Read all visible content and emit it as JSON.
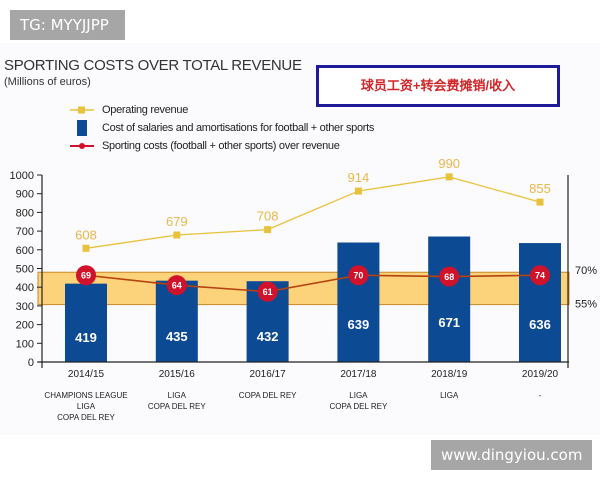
{
  "watermarks": {
    "top": "TG: MYYJJPP",
    "bottom": "www.dingyiou.com"
  },
  "annotation_box": "球员工资+转会费摊销/收入",
  "colors": {
    "revenue": "#e8c23a",
    "bar": "#0d4a94",
    "ratio": "#d0122a",
    "band": "#fcd27a",
    "annotation_border": "#1d1b9a",
    "annotation_text": "#d0262a"
  },
  "chart_data": {
    "type": "bar",
    "title": "SPORTING COSTS OVER TOTAL REVENUE",
    "subtitle": "(Millions of euros)",
    "categories": [
      "2014/15",
      "2015/16",
      "2016/17",
      "2017/18",
      "2018/19",
      "2019/20"
    ],
    "category_sublabels": [
      [
        "CHAMPIONS LEAGUE",
        "LIGA",
        "COPA DEL REY"
      ],
      [
        "LIGA",
        "COPA DEL REY"
      ],
      [
        "COPA DEL REY"
      ],
      [
        "LIGA",
        "COPA DEL REY"
      ],
      [
        "LIGA"
      ],
      [
        "-"
      ]
    ],
    "ylim": [
      0,
      1000
    ],
    "yticks": [
      0,
      100,
      200,
      300,
      400,
      500,
      600,
      700,
      800,
      900,
      1000
    ],
    "legend": [
      {
        "label": "Operating revenue",
        "type": "line-marker"
      },
      {
        "label": "Cost of salaries and amortisations for football + other sports",
        "type": "bar"
      },
      {
        "label": "Sporting costs (football + other sports) over revenue",
        "type": "line-marker"
      }
    ],
    "series": [
      {
        "name": "Operating revenue",
        "type": "line",
        "values": [
          608,
          679,
          708,
          914,
          990,
          855
        ]
      },
      {
        "name": "Cost of salaries and amortisations for football + other sports",
        "type": "bar",
        "values": [
          419,
          435,
          432,
          639,
          671,
          636
        ]
      },
      {
        "name": "Sporting costs (football + other sports) over revenue",
        "type": "line",
        "unit": "%",
        "values": [
          69,
          64,
          61,
          70,
          68,
          74
        ]
      }
    ],
    "reference_band": {
      "low_label": "55%",
      "high_label": "70%",
      "low": 55,
      "high": 70
    }
  }
}
